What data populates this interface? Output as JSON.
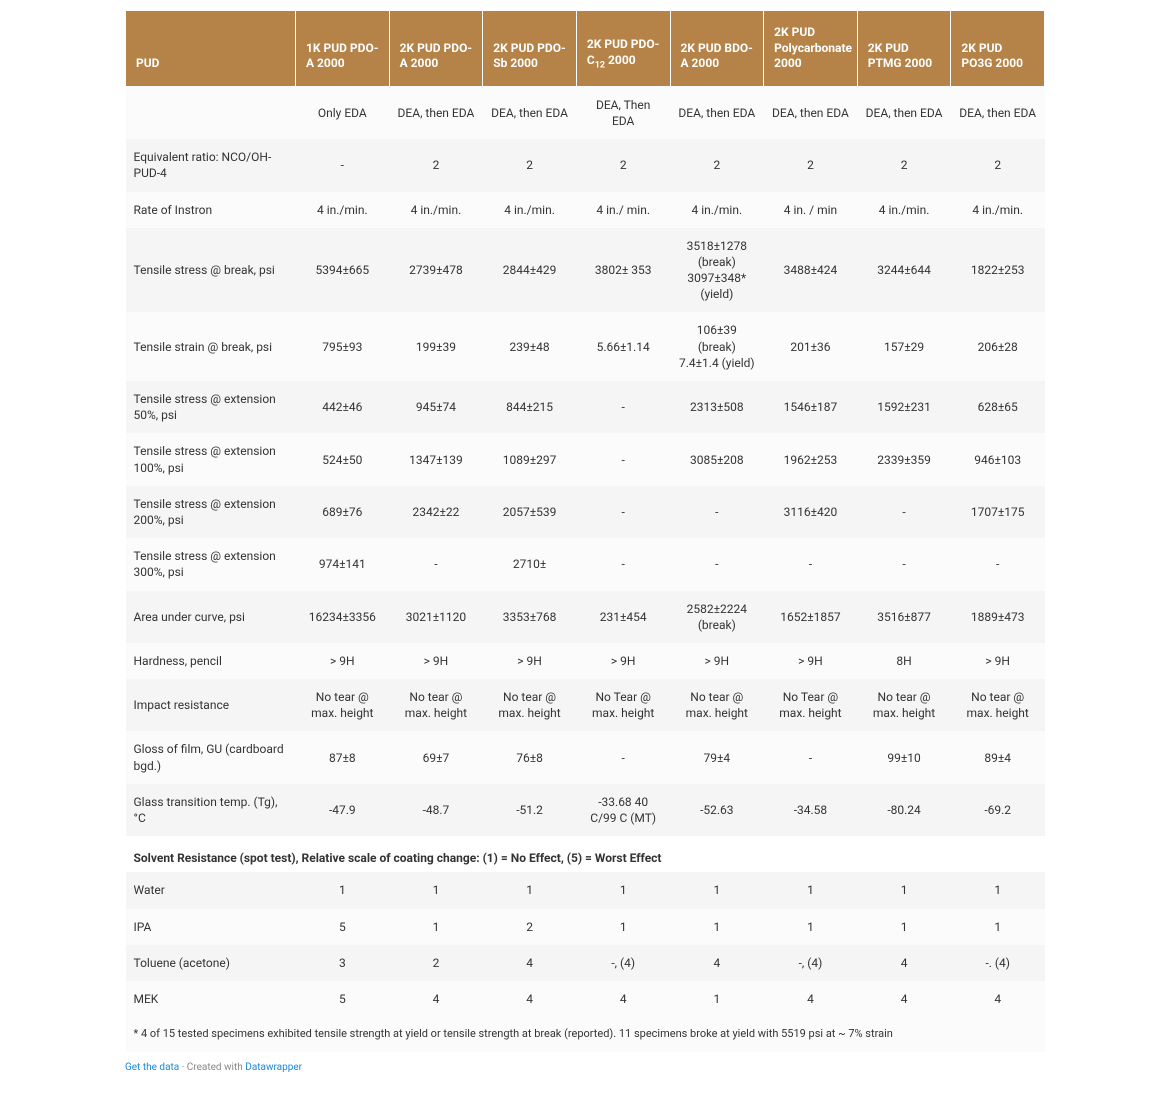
{
  "colors": {
    "header_bg": "#b58347",
    "header_text": "#ffffff",
    "row_odd": "#fbfbfb",
    "row_even": "#f5f5f5",
    "link": "#1a87d5"
  },
  "table": {
    "header_first": "PUD",
    "columns": [
      "1K PUD PDO-A 2000",
      "2K PUD PDO-A 2000",
      "2K PUD PDO-Sb 2000",
      "2K PUD PDO-C₁₂ 2000",
      "2K PUD BDO-A 2000",
      "2K PUD Polycarbonate 2000",
      "2K PUD PTMG 2000",
      "2K PUD PO3G 2000"
    ],
    "rows": [
      {
        "label": "",
        "cells": [
          "Only EDA",
          "DEA, then EDA",
          "DEA, then EDA",
          "DEA, Then EDA",
          "DEA, then EDA",
          "DEA, then EDA",
          "DEA, then EDA",
          "DEA, then EDA"
        ]
      },
      {
        "label": "Equivalent ratio: NCO/OH-PUD-4",
        "cells": [
          "-",
          "2",
          "2",
          "2",
          "2",
          "2",
          "2",
          "2"
        ]
      },
      {
        "label": "Rate of Instron",
        "cells": [
          "4 in./min.",
          "4 in./min.",
          "4 in./min.",
          "4 in./ min.",
          "4 in./min.",
          "4 in. / min",
          "4 in./min.",
          "4 in./min."
        ]
      },
      {
        "label": "Tensile stress @ break, psi",
        "cells": [
          "5394±665",
          "2739±478",
          "2844±429",
          "3802± 353",
          "3518±1278 (break) 3097±348* (yield)",
          "3488±424",
          "3244±644",
          "1822±253"
        ]
      },
      {
        "label": "Tensile strain @ break, psi",
        "cells": [
          "795±93",
          "199±39",
          "239±48",
          "5.66±1.14",
          "106±39 (break) 7.4±1.4 (yield)",
          "201±36",
          "157±29",
          "206±28"
        ]
      },
      {
        "label": "Tensile stress @ extension 50%, psi",
        "cells": [
          "442±46",
          "945±74",
          "844±215",
          "-",
          "2313±508",
          "1546±187",
          "1592±231",
          "628±65"
        ]
      },
      {
        "label": "Tensile stress @ extension 100%, psi",
        "cells": [
          "524±50",
          "1347±139",
          "1089±297",
          "-",
          "3085±208",
          "1962±253",
          "2339±359",
          "946±103"
        ]
      },
      {
        "label": "Tensile stress @ extension 200%, psi",
        "cells": [
          "689±76",
          "2342±22",
          "2057±539",
          "-",
          "-",
          "3116±420",
          "-",
          "1707±175"
        ]
      },
      {
        "label": "Tensile stress @ extension 300%, psi",
        "cells": [
          "974±141",
          "-",
          "2710±",
          "-",
          "-",
          "-",
          "-",
          "-"
        ]
      },
      {
        "label": "Area under curve, psi",
        "cells": [
          "16234±3356",
          "3021±1120",
          "3353±768",
          "231±454",
          "2582±2224 (break)",
          "1652±1857",
          "3516±877",
          "1889±473"
        ]
      },
      {
        "label": "Hardness, pencil",
        "cells": [
          "> 9H",
          "> 9H",
          "> 9H",
          "> 9H",
          "> 9H",
          "> 9H",
          "8H",
          "> 9H"
        ]
      },
      {
        "label": "Impact resistance",
        "cells": [
          "No tear @ max. height",
          "No tear @ max. height",
          "No tear @ max. height",
          "No Tear @ max. height",
          "No tear @ max. height",
          "No Tear @ max. height",
          "No tear @ max. height",
          "No tear @ max. height"
        ]
      },
      {
        "label": "Gloss of film, GU (cardboard bgd.)",
        "cells": [
          "87±8",
          "69±7",
          "76±8",
          "-",
          "79±4",
          "-",
          "99±10",
          "89±4"
        ]
      },
      {
        "label": "Glass transition temp. (Tg), °C",
        "cells": [
          "-47.9",
          "-48.7",
          "-51.2",
          "-33.68 40 C/99 C (MT)",
          "-52.63",
          "-34.58",
          "-80.24",
          "-69.2"
        ]
      }
    ],
    "section_label": "Solvent Resistance (spot test), Relative scale of coating change: (1) = No Effect, (5) = Worst Effect",
    "solvent_rows": [
      {
        "label": "Water",
        "cells": [
          "1",
          "1",
          "1",
          "1",
          "1",
          "1",
          "1",
          "1"
        ]
      },
      {
        "label": "IPA",
        "cells": [
          "5",
          "1",
          "2",
          "1",
          "1",
          "1",
          "1",
          "1"
        ]
      },
      {
        "label": "Toluene (acetone)",
        "cells": [
          "3",
          "2",
          "4",
          "-, (4)",
          "4",
          "-, (4)",
          "4",
          "-. (4)"
        ]
      },
      {
        "label": "MEK",
        "cells": [
          "5",
          "4",
          "4",
          "4",
          "1",
          "4",
          "4",
          "4"
        ]
      }
    ],
    "footnote": "* 4 of 15 tested specimens exhibited tensile strength at yield or tensile strength at break (reported). 11 specimens broke at yield with 5519 psi at ~ 7% strain"
  },
  "footer": {
    "get_data": "Get the data",
    "sep": " · ",
    "created_with": "Created with ",
    "dw": "Datawrapper"
  }
}
